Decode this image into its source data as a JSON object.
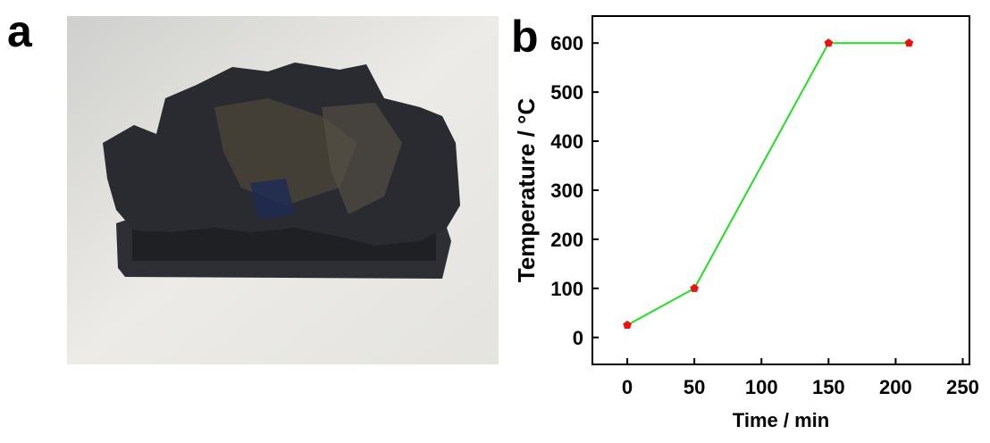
{
  "panel_a": {
    "label": "a"
  },
  "chart_data": {
    "type": "line",
    "label": "b",
    "x_label": "Time / min",
    "y_label": "Temperature / °C",
    "x": [
      0,
      50,
      150,
      210
    ],
    "series": [
      {
        "color": "#22dd22",
        "marker_color": "#ee1111",
        "values": [
          25,
          100,
          600,
          600
        ]
      }
    ],
    "xlim": [
      -26,
      255
    ],
    "ylim": [
      -55,
      655
    ],
    "xticks": [
      0,
      50,
      100,
      150,
      200,
      250
    ],
    "yticks": [
      0,
      100,
      200,
      300,
      400,
      500,
      600
    ]
  }
}
